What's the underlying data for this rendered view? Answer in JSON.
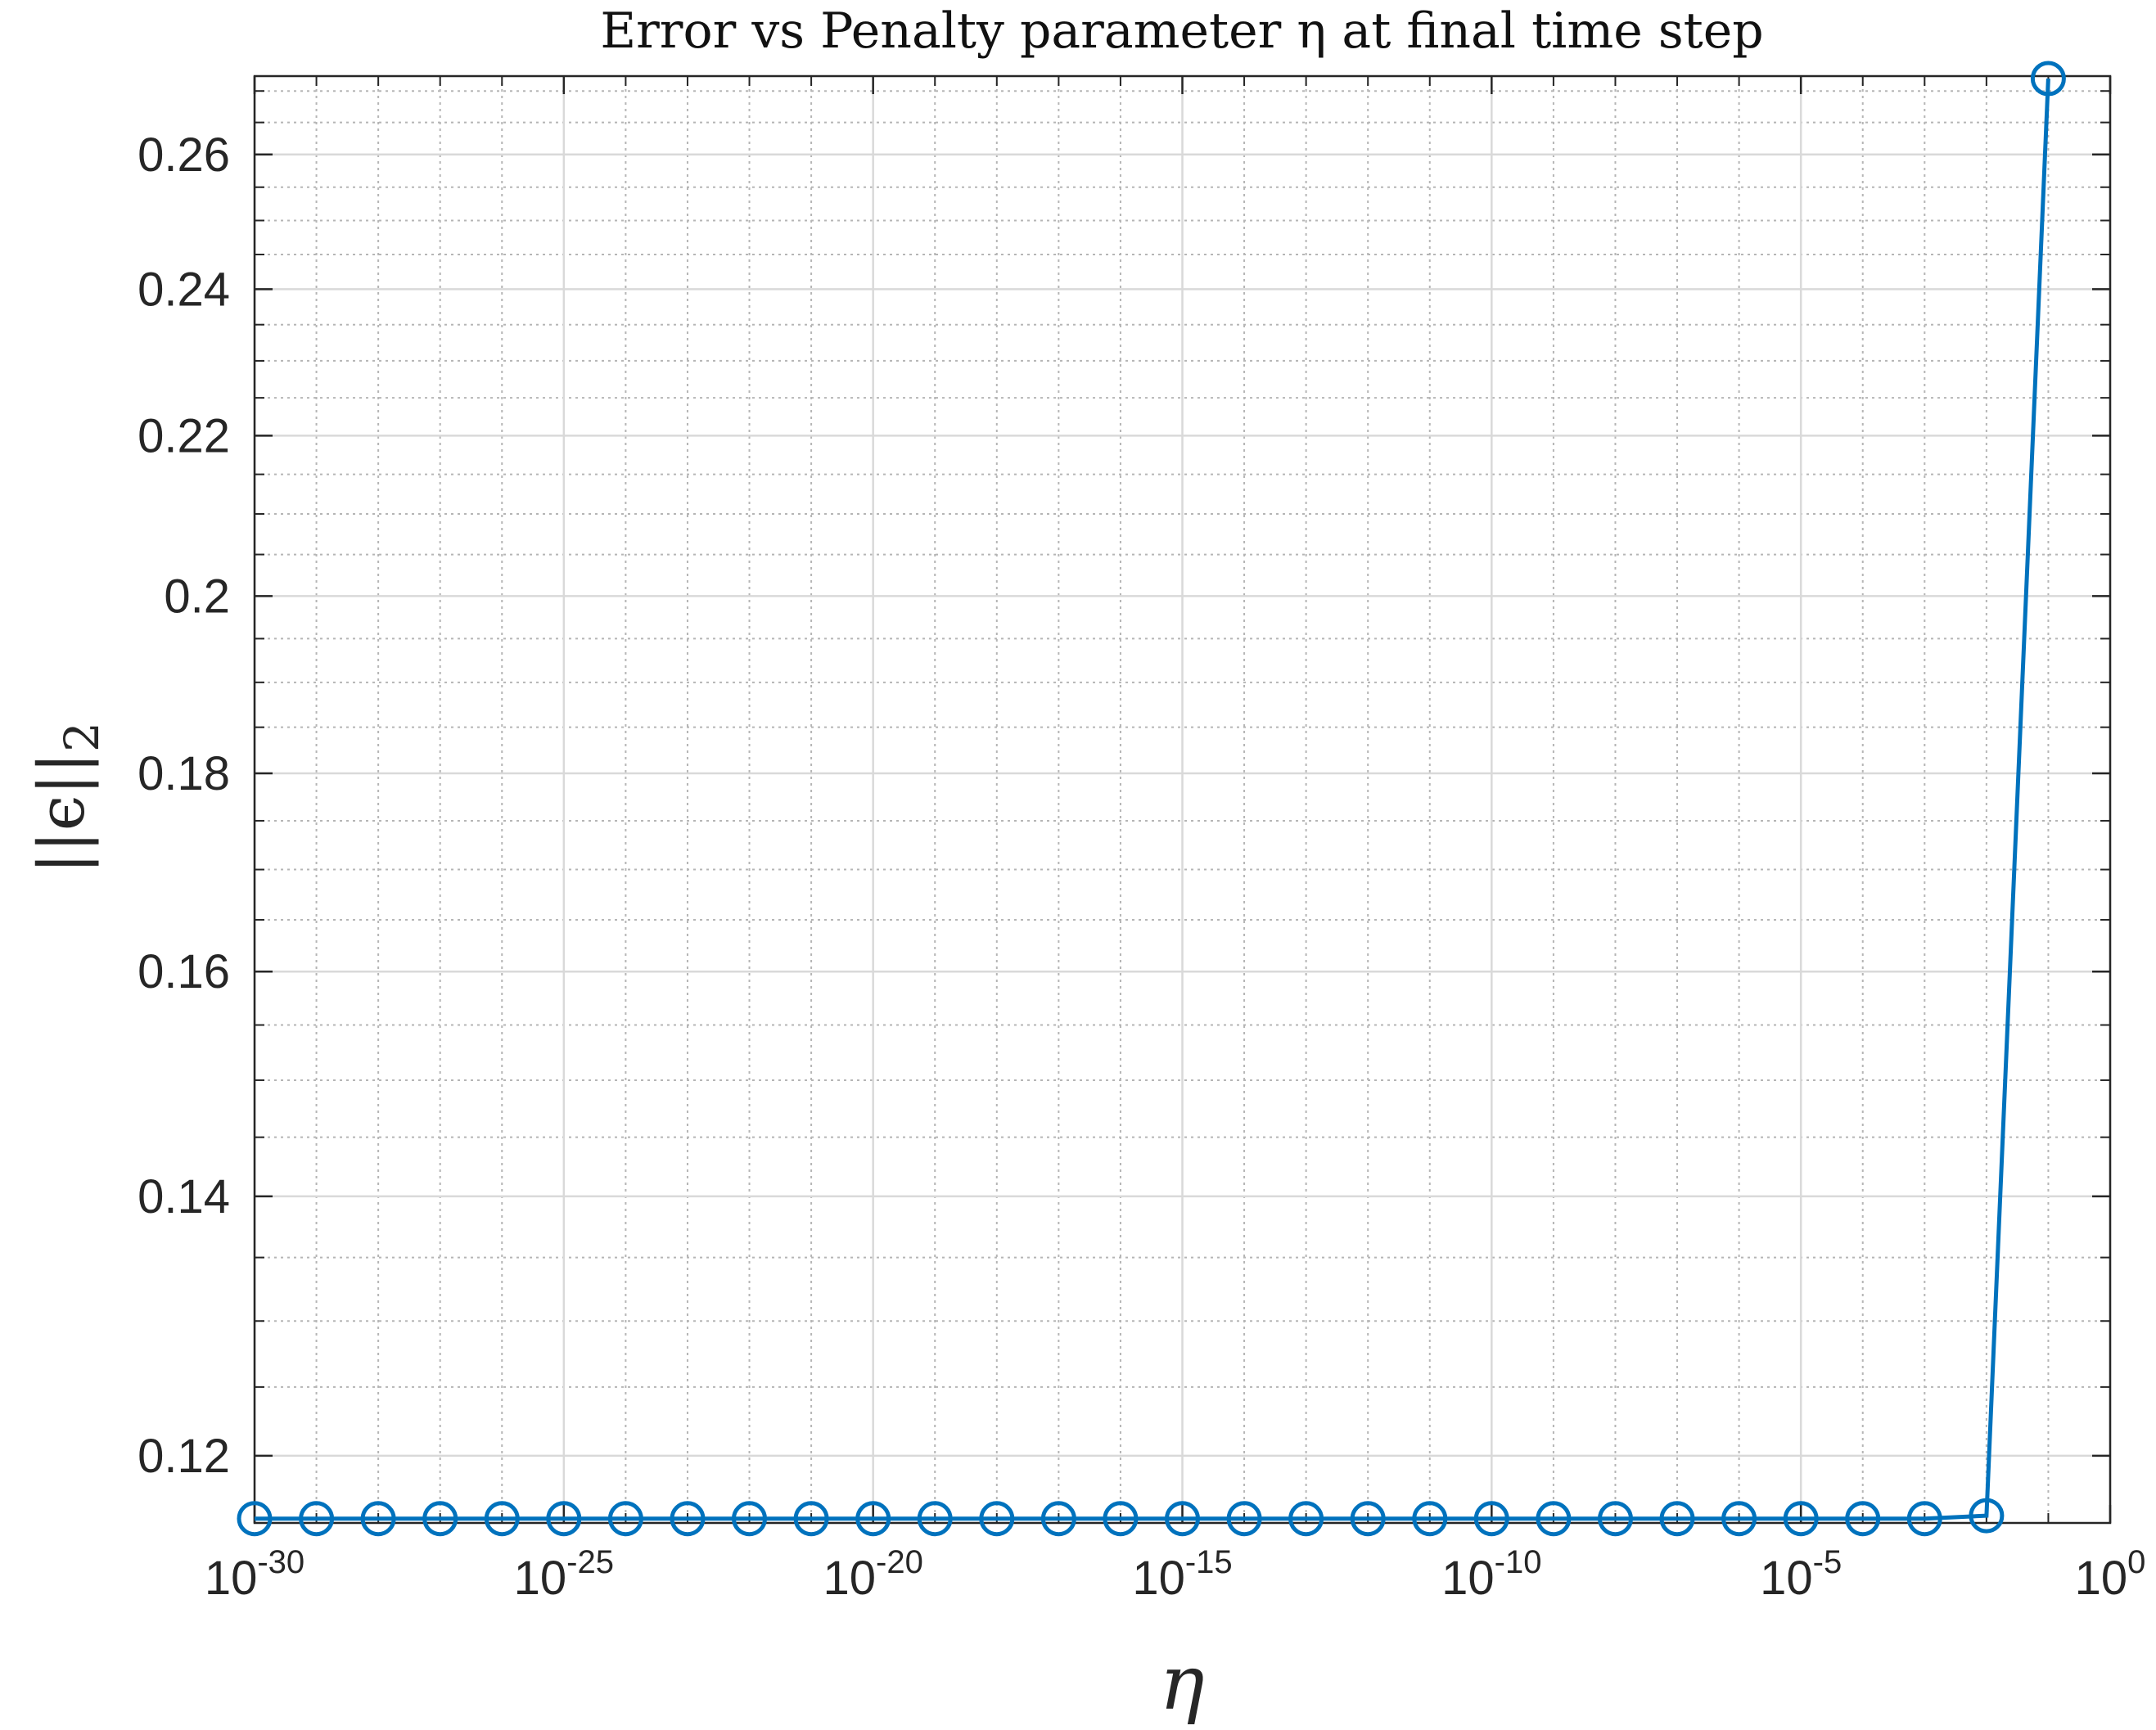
{
  "chart_data": {
    "type": "line",
    "title": "Error vs Penalty parameter η at final time step",
    "xlabel": "η",
    "ylabel": "||ϵ||",
    "ylabel_subscript": "2",
    "xscale": "log",
    "yscale": "log",
    "xlim": [
      "1e-30",
      "1e0"
    ],
    "ylim": [
      0.1153,
      0.2724
    ],
    "grid": true,
    "minor_grid": true,
    "legend": "none",
    "line_color": "#0072BD",
    "marker": "circle",
    "x_ticks": [
      {
        "base": "10",
        "exp": "-30",
        "value": -30
      },
      {
        "base": "10",
        "exp": "-25",
        "value": -25
      },
      {
        "base": "10",
        "exp": "-20",
        "value": -20
      },
      {
        "base": "10",
        "exp": "-15",
        "value": -15
      },
      {
        "base": "10",
        "exp": "-10",
        "value": -10
      },
      {
        "base": "10",
        "exp": "-5",
        "value": -5
      },
      {
        "base": "10",
        "exp": "0",
        "value": 0
      }
    ],
    "y_ticks": [
      "0.12",
      "0.14",
      "0.16",
      "0.18",
      "0.2",
      "0.22",
      "0.24",
      "0.26"
    ],
    "series": [
      {
        "x": [
          "1e-30",
          "1e-29",
          "1e-28",
          "1e-27",
          "1e-26",
          "1e-25",
          "1e-24",
          "1e-23",
          "1e-22",
          "1e-21",
          "1e-20",
          "1e-19",
          "1e-18",
          "1e-17",
          "1e-16",
          "1e-15",
          "1e-14",
          "1e-13",
          "1e-12",
          "1e-11",
          "1e-10",
          "1e-9",
          "1e-8",
          "1e-7",
          "1e-6",
          "1e-5",
          "1e-4",
          "1e-3",
          "1e-2",
          "1e-1"
        ],
        "y": [
          0.1156,
          0.1156,
          0.1156,
          0.1156,
          0.1156,
          0.1156,
          0.1156,
          0.1156,
          0.1156,
          0.1156,
          0.1156,
          0.1156,
          0.1156,
          0.1156,
          0.1156,
          0.1156,
          0.1156,
          0.1156,
          0.1156,
          0.1156,
          0.1156,
          0.1156,
          0.1156,
          0.1156,
          0.1156,
          0.1156,
          0.1156,
          0.1156,
          0.1158,
          0.272
        ]
      }
    ]
  }
}
